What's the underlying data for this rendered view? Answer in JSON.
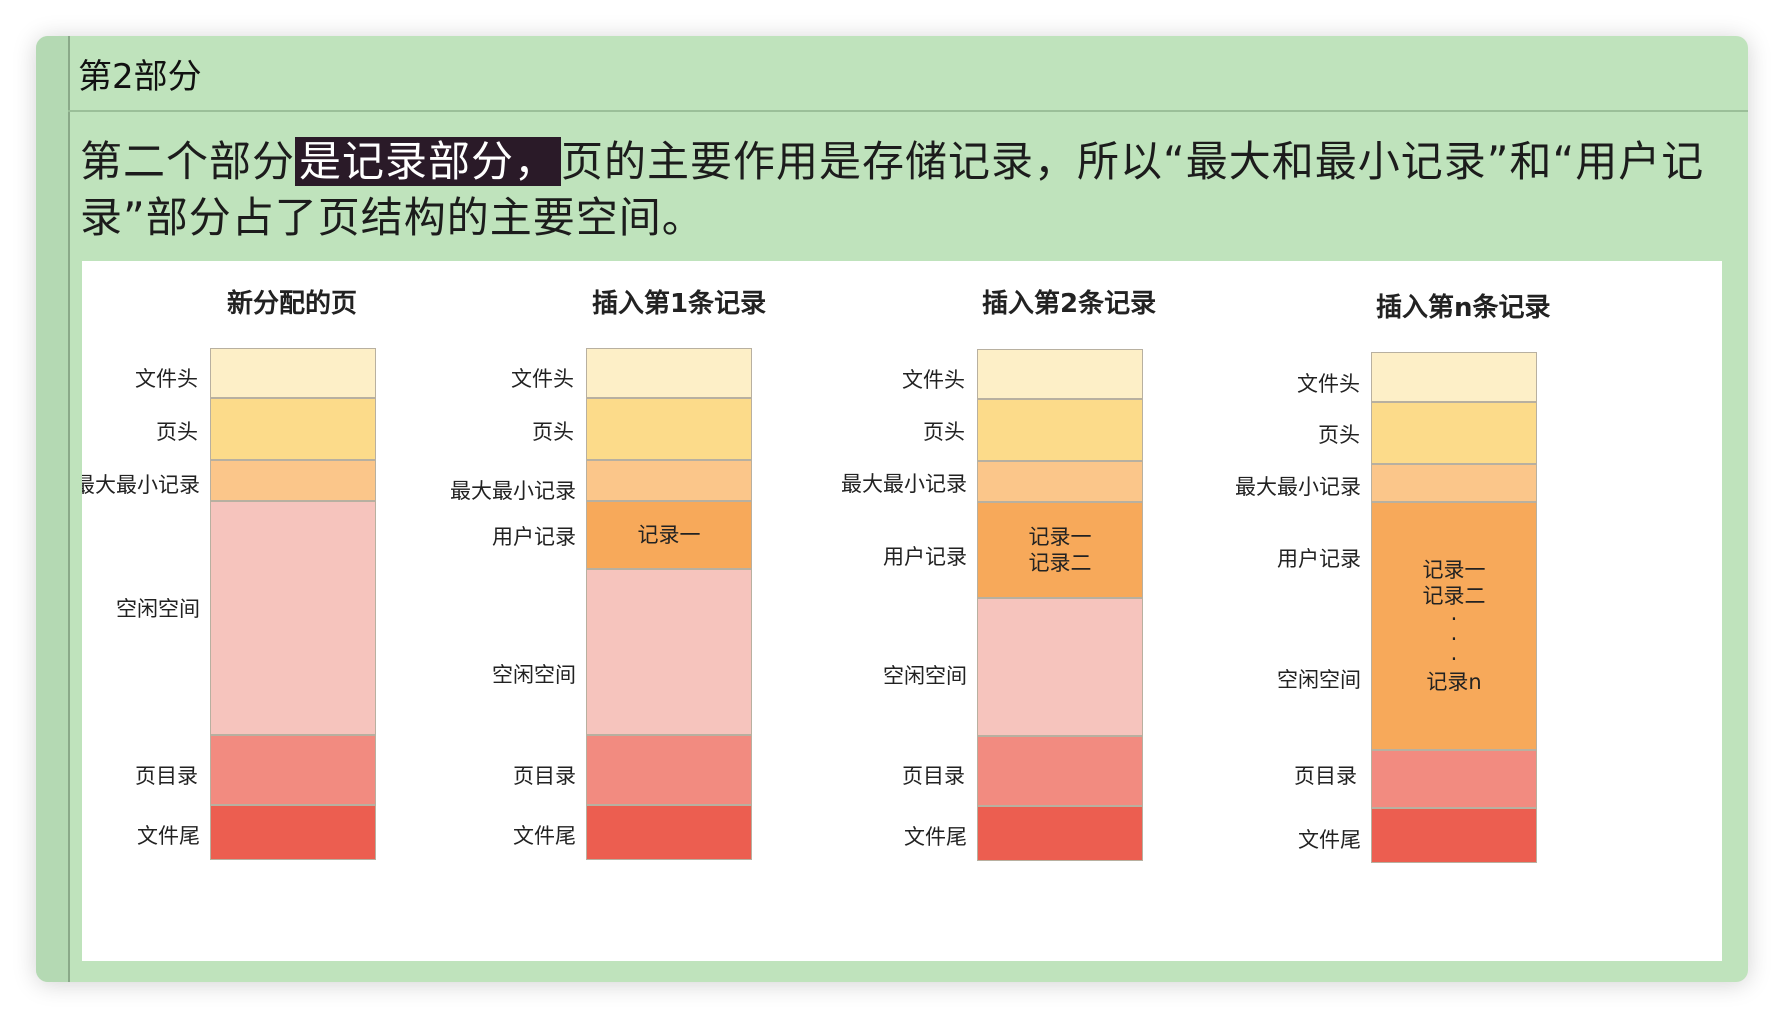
{
  "header": {
    "title": "第2部分"
  },
  "paragraph": {
    "before": "第二个部分",
    "highlight": "是记录部分，",
    "after": "页的主要作用是存储记录，所以“最大和最小记录”和“用户记录”部分占了页结构的主要空间。"
  },
  "diagram": {
    "columns": [
      {
        "title": "新分配的页",
        "labels": {
          "file_header": "文件头",
          "page_header": "页头",
          "infimum": "最大最小记录",
          "free": "空闲空间",
          "directory": "页目录",
          "trailer": "文件尾"
        }
      },
      {
        "title": "插入第1条记录",
        "labels": {
          "file_header": "文件头",
          "page_header": "页头",
          "infimum": "最大最小记录",
          "user": "用户记录",
          "free": "空闲空间",
          "directory": "页目录",
          "trailer": "文件尾"
        },
        "records": [
          "记录一"
        ]
      },
      {
        "title": "插入第2条记录",
        "labels": {
          "file_header": "文件头",
          "page_header": "页头",
          "infimum": "最大最小记录",
          "user": "用户记录",
          "free": "空闲空间",
          "directory": "页目录",
          "trailer": "文件尾"
        },
        "records": [
          "记录一",
          "记录二"
        ]
      },
      {
        "title": "插入第n条记录",
        "labels": {
          "file_header": "文件头",
          "page_header": "页头",
          "infimum": "最大最小记录",
          "user": "用户记录",
          "free": "空闲空间",
          "directory": "页目录",
          "trailer": "文件尾"
        },
        "records": [
          "记录一",
          "记录二",
          "·",
          "·",
          "·",
          "记录n"
        ]
      }
    ]
  },
  "colors": {
    "background": "#bfe3bc",
    "file_header": "#fdefc7",
    "page_header": "#fcdb8a",
    "infimum": "#fbc68a",
    "user_records": "#f7a95a",
    "free_space": "#f6c4bd",
    "page_directory": "#f28b80",
    "file_trailer": "#ec5e50",
    "highlight": "#2a1a28"
  }
}
